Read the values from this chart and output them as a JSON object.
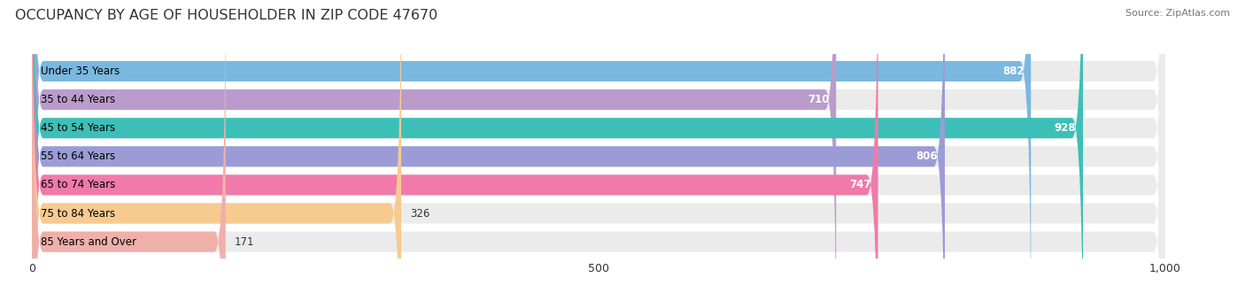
{
  "title": "OCCUPANCY BY AGE OF HOUSEHOLDER IN ZIP CODE 47670",
  "source": "Source: ZipAtlas.com",
  "categories": [
    "Under 35 Years",
    "35 to 44 Years",
    "45 to 54 Years",
    "55 to 64 Years",
    "65 to 74 Years",
    "75 to 84 Years",
    "85 Years and Over"
  ],
  "values": [
    882,
    710,
    928,
    806,
    747,
    326,
    171
  ],
  "bar_colors": [
    "#7ab8df",
    "#b99ccb",
    "#3dbfb8",
    "#9b9cd6",
    "#f07aaa",
    "#f7ca90",
    "#f0b0aa"
  ],
  "xlim_data": [
    0,
    1000
  ],
  "xticks": [
    0,
    500,
    1000
  ],
  "xticklabels": [
    "0",
    "500",
    "1,000"
  ],
  "background_color": "#ffffff",
  "bar_bg_color": "#ebebeb",
  "title_fontsize": 11.5,
  "label_fontsize": 8.5,
  "value_fontsize": 8.5
}
